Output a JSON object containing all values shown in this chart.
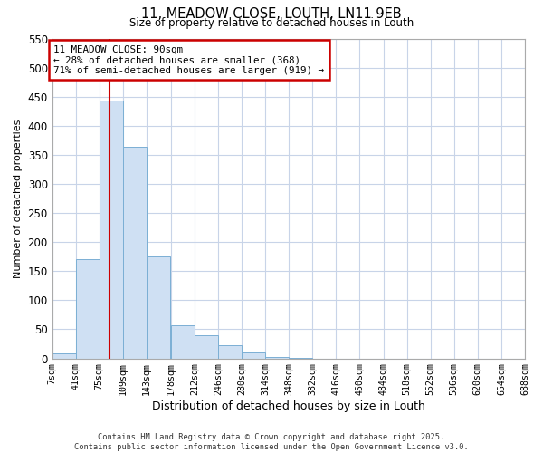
{
  "title": "11, MEADOW CLOSE, LOUTH, LN11 9EB",
  "subtitle": "Size of property relative to detached houses in Louth",
  "xlabel": "Distribution of detached houses by size in Louth",
  "ylabel": "Number of detached properties",
  "bar_color": "#cfe0f3",
  "bar_edge_color": "#7bafd4",
  "background_color": "#ffffff",
  "grid_color": "#c8d4e8",
  "bin_edges": [
    7,
    41,
    75,
    109,
    143,
    178,
    212,
    246,
    280,
    314,
    348,
    382,
    416,
    450,
    484,
    518,
    552,
    586,
    620,
    654,
    688
  ],
  "bin_labels": [
    "7sqm",
    "41sqm",
    "75sqm",
    "109sqm",
    "143sqm",
    "178sqm",
    "212sqm",
    "246sqm",
    "280sqm",
    "314sqm",
    "348sqm",
    "382sqm",
    "416sqm",
    "450sqm",
    "484sqm",
    "518sqm",
    "552sqm",
    "586sqm",
    "620sqm",
    "654sqm",
    "688sqm"
  ],
  "counts": [
    8,
    170,
    443,
    364,
    176,
    57,
    40,
    22,
    10,
    2,
    1,
    0,
    0,
    0,
    0,
    0,
    0,
    0,
    0,
    0
  ],
  "ylim": [
    0,
    550
  ],
  "yticks": [
    0,
    50,
    100,
    150,
    200,
    250,
    300,
    350,
    400,
    450,
    500,
    550
  ],
  "property_line_x": 90,
  "property_line_color": "#cc0000",
  "annotation_line1": "11 MEADOW CLOSE: 90sqm",
  "annotation_line2": "← 28% of detached houses are smaller (368)",
  "annotation_line3": "71% of semi-detached houses are larger (919) →",
  "footer_line1": "Contains HM Land Registry data © Crown copyright and database right 2025.",
  "footer_line2": "Contains public sector information licensed under the Open Government Licence v3.0."
}
